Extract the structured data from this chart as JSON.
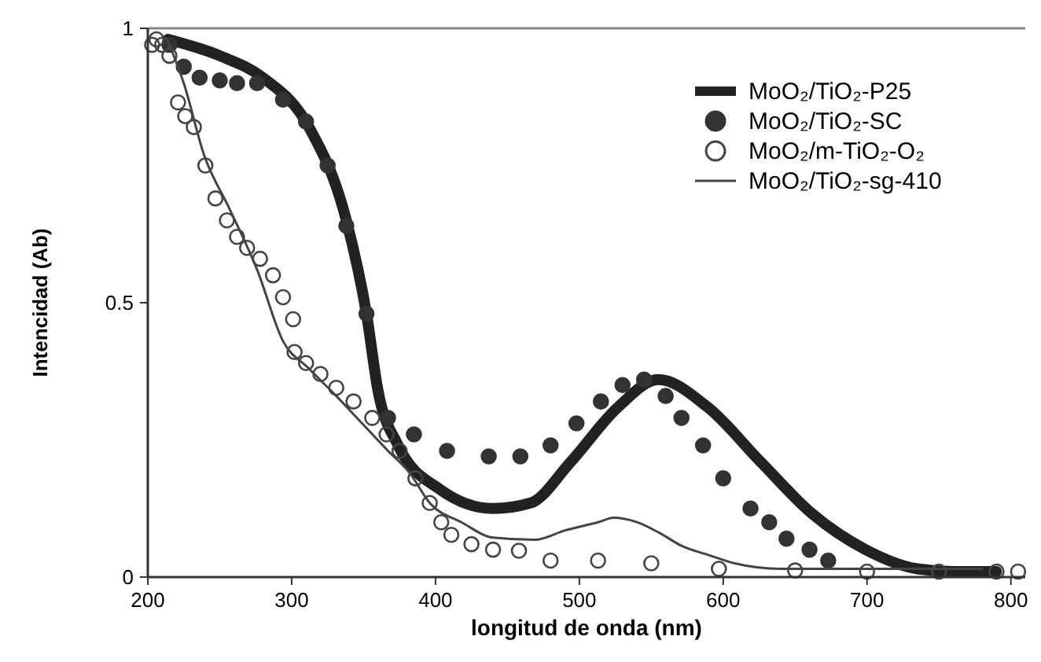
{
  "chart_data": {
    "type": "line",
    "xlabel": "longitud de onda (nm)",
    "ylabel": "Intencidad (Ab)",
    "xlim": [
      200,
      810
    ],
    "ylim": [
      0,
      1
    ],
    "xticks": [
      200,
      300,
      400,
      500,
      600,
      700,
      800
    ],
    "yticks": [
      0,
      0.5,
      1
    ],
    "grid": false,
    "legend": "top right",
    "series": [
      {
        "name": "MoO₂/TiO₂-P25",
        "color": "#222222",
        "marker": "none",
        "x": [
          214,
          250,
          280,
          312,
          338,
          352,
          360,
          374,
          403,
          440,
          466,
          494,
          527,
          555,
          589,
          626,
          662,
          699,
          735,
          760,
          790
        ],
        "values": [
          0.98,
          0.95,
          0.91,
          0.82,
          0.65,
          0.48,
          0.34,
          0.24,
          0.16,
          0.125,
          0.135,
          0.21,
          0.31,
          0.36,
          0.31,
          0.21,
          0.115,
          0.05,
          0.015,
          0.01,
          0.01
        ]
      },
      {
        "name": "MoO₂/TiO₂-SC",
        "color": "#333333",
        "type": "scatter",
        "marker": "circle",
        "x": [
          215,
          225,
          236,
          250,
          262,
          276,
          294,
          310,
          325,
          338,
          352,
          367,
          385,
          408,
          437,
          459,
          480,
          498,
          515,
          530,
          545,
          560,
          571,
          586,
          600,
          619,
          632,
          644,
          660,
          673
        ],
        "values": [
          0.97,
          0.93,
          0.91,
          0.905,
          0.9,
          0.9,
          0.87,
          0.83,
          0.75,
          0.64,
          0.48,
          0.29,
          0.26,
          0.23,
          0.22,
          0.22,
          0.24,
          0.28,
          0.32,
          0.35,
          0.36,
          0.33,
          0.29,
          0.24,
          0.18,
          0.125,
          0.1,
          0.07,
          0.05,
          0.03
        ]
      },
      {
        "name": "MoO₂/m-TiO₂-O₂",
        "color": "#444444",
        "type": "scatter",
        "marker": "circle",
        "x": [
          203,
          206,
          210,
          215,
          221,
          226,
          232,
          240,
          247,
          255,
          262,
          269,
          278,
          287,
          294,
          301,
          302,
          310,
          320,
          331,
          343,
          356,
          366,
          375,
          386,
          396,
          404,
          411,
          425,
          440,
          458,
          480,
          513,
          550,
          597,
          650,
          700,
          750,
          790,
          805
        ],
        "values": [
          0.97,
          0.98,
          0.97,
          0.95,
          0.865,
          0.84,
          0.82,
          0.75,
          0.69,
          0.65,
          0.62,
          0.6,
          0.58,
          0.55,
          0.51,
          0.47,
          0.41,
          0.39,
          0.37,
          0.345,
          0.32,
          0.29,
          0.26,
          0.23,
          0.18,
          0.135,
          0.1,
          0.077,
          0.06,
          0.05,
          0.048,
          0.03,
          0.03,
          0.025,
          0.015,
          0.012,
          0.01,
          0.01,
          0.01,
          0.01
        ]
      },
      {
        "name": "MoO₂/TiO₂-sg-410",
        "color": "#444444",
        "marker": "none",
        "x": [
          215,
          225,
          239,
          257,
          276,
          294,
          312,
          331,
          349,
          367,
          382,
          396,
          418,
          440,
          469,
          490,
          513,
          524,
          540,
          556,
          571,
          590,
          608,
          640,
          700,
          780
        ],
        "values": [
          0.97,
          0.9,
          0.77,
          0.67,
          0.56,
          0.43,
          0.38,
          0.33,
          0.28,
          0.23,
          0.19,
          0.135,
          0.1,
          0.072,
          0.068,
          0.085,
          0.1,
          0.108,
          0.1,
          0.08,
          0.057,
          0.04,
          0.025,
          0.015,
          0.015,
          0.015
        ]
      }
    ]
  }
}
